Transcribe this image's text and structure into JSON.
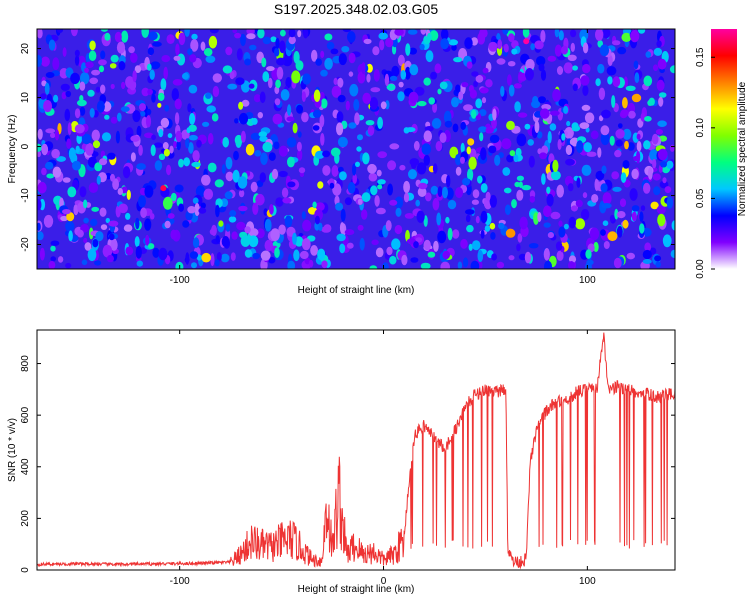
{
  "title": "S197.2025.348.02.03.G05",
  "chart_data": [
    {
      "type": "heatmap",
      "xlabel": "Height of straight line (km)",
      "ylabel": "Frequency (Hz)",
      "xlim": [
        -170,
        143
      ],
      "ylim": [
        -25,
        24
      ],
      "x_ticks": [
        -100,
        0,
        100
      ],
      "x_tick_labels": [
        "-100",
        "",
        "100"
      ],
      "y_ticks": [
        -20,
        -10,
        0,
        10,
        20
      ],
      "y_tick_labels": [
        "-20",
        "-10",
        "0",
        "10",
        "20"
      ],
      "colorbar": {
        "label": "Normalized spectral amplitude",
        "range": [
          0,
          0.17
        ],
        "ticks": [
          0.0,
          0.05,
          0.1,
          0.15
        ],
        "tick_labels": [
          "0.00",
          "0.05",
          "0.10",
          "0.15"
        ],
        "colormap": [
          "#ffffff",
          "#8000ff",
          "#0000ff",
          "#00c8ff",
          "#00ff80",
          "#80ff00",
          "#ffff00",
          "#ff8000",
          "#ff0000",
          "#ff00a0"
        ]
      },
      "description_values": {
        "dominant_level": 0.03,
        "peak_level": 0.17
      }
    },
    {
      "type": "line",
      "xlabel": "Height of straight line (km)",
      "ylabel": "SNR (10 * v/v)",
      "xlim": [
        -170,
        143
      ],
      "ylim": [
        0,
        930
      ],
      "x_ticks": [
        -100,
        0,
        100
      ],
      "x_tick_labels": [
        "-100",
        "0",
        "100"
      ],
      "y_ticks": [
        0,
        200,
        400,
        600,
        800
      ],
      "y_tick_labels": [
        "0",
        "200",
        "400",
        "600",
        "800"
      ],
      "color": "#ee3333",
      "series": [
        {
          "x": [
            -170,
            -150,
            -130,
            -110,
            -90,
            -75,
            -70,
            -65,
            -60,
            -55,
            -50,
            -45,
            -40,
            -35,
            -30,
            -28,
            -25,
            -22,
            -20,
            -18,
            -15,
            -12,
            -10,
            -5,
            0,
            5,
            10,
            12,
            14,
            15,
            17,
            20,
            22,
            25,
            30,
            35,
            40,
            45,
            50,
            55,
            60,
            61,
            63,
            65,
            70,
            72,
            75,
            80,
            85,
            90,
            95,
            100,
            105,
            108,
            110,
            115,
            120,
            125,
            130,
            135,
            140,
            143
          ],
          "values": [
            22,
            24,
            22,
            24,
            26,
            30,
            60,
            110,
            95,
            90,
            110,
            120,
            80,
            40,
            35,
            260,
            80,
            300,
            180,
            60,
            90,
            80,
            60,
            70,
            40,
            60,
            120,
            300,
            420,
            510,
            540,
            560,
            540,
            510,
            470,
            540,
            630,
            680,
            700,
            690,
            700,
            80,
            40,
            30,
            40,
            420,
            540,
            620,
            650,
            660,
            690,
            700,
            710,
            920,
            700,
            710,
            700,
            690,
            680,
            670,
            680,
            690
          ]
        }
      ]
    }
  ]
}
